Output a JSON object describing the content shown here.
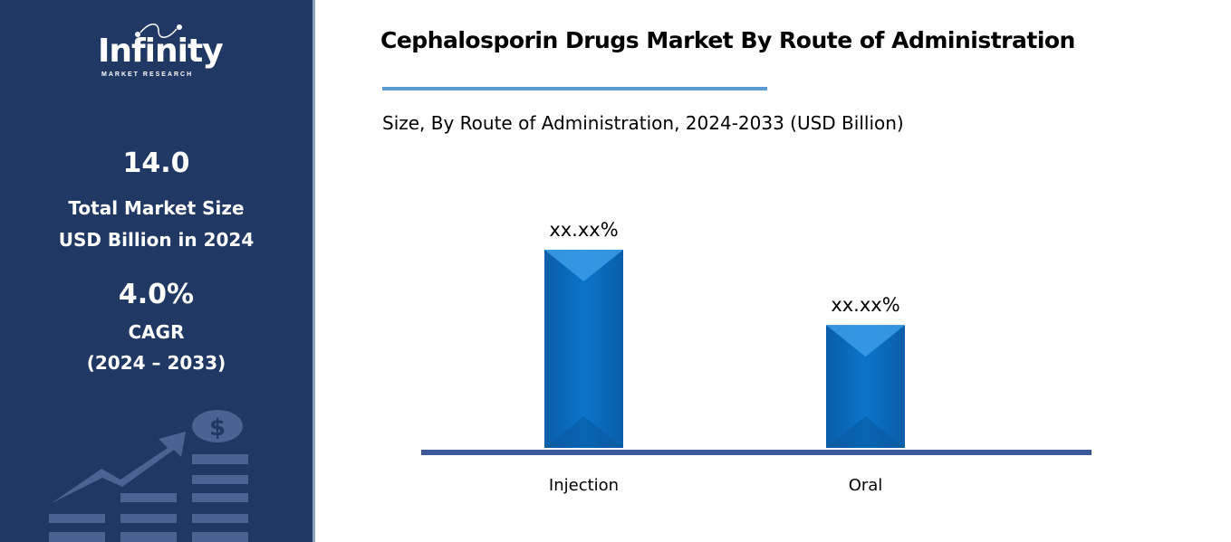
{
  "sidebar": {
    "logo_text": "Infinity",
    "logo_subtext": "MARKET RESEARCH",
    "market_size_value": "14.0",
    "market_size_label_1": "Total Market Size",
    "market_size_label_2": "USD Billion in 2024",
    "cagr_value": "4.0%",
    "cagr_label": "CAGR",
    "cagr_period": "(2024 – 2033)",
    "icon": "growth-chart-dollar-icon",
    "background_color": "#203864"
  },
  "chart_data": {
    "type": "bar",
    "title": "Cephalosporin Drugs Market By Route of Administration",
    "subtitle": "Size, By Route of Administration, 2024-2033 (USD Billion)",
    "categories": [
      "Injection",
      "Oral"
    ],
    "values": [
      100,
      62
    ],
    "data_labels": [
      "xx.xx%",
      "xx.xx%"
    ],
    "ylim": [
      0,
      100
    ],
    "grid": false,
    "bar_color": "#0a6fc2",
    "axis_color": "#3b5998"
  }
}
